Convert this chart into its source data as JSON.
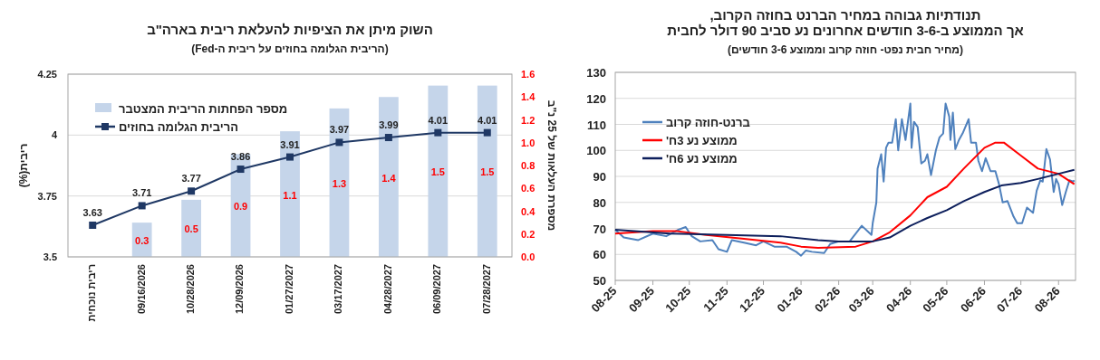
{
  "chart_data": [
    {
      "type": "bar",
      "title": "השוק מיתן את הציפיות להעלאת ריבית בארה\"ב",
      "subtitle": "(הריבית הגלומה בחוזים על ריבית ה-Fed)",
      "ylabel": "ריבית(%)",
      "y2label": "מספרת העלאות של 25 נ\"ב",
      "categories": [
        "ריבית נוכחית",
        "09/16/2026",
        "10/28/2026",
        "12/09/2026",
        "01/27/2027",
        "03/17/2027",
        "04/28/2027",
        "06/09/2027",
        "07/28/2027"
      ],
      "series": [
        {
          "type": "bar",
          "axis": "y2",
          "name": "מספר הפחתות הריבית המצטבר",
          "color": "#c5d5ea",
          "values": [
            null,
            0.3,
            0.5,
            0.9,
            1.1,
            1.3,
            1.4,
            1.5,
            1.5
          ]
        },
        {
          "type": "line",
          "name": "הריבית הגלומה בחוזים",
          "color": "#1f3864",
          "marker": "square",
          "values": [
            3.63,
            3.71,
            3.77,
            3.86,
            3.91,
            3.97,
            3.99,
            4.01,
            4.01
          ]
        }
      ],
      "ylim": [
        3.5,
        4.25
      ],
      "yticks": [
        3.5,
        3.75,
        4,
        4.25
      ],
      "y2lim": [
        0,
        1.6
      ],
      "y2ticks": [
        {
          "value": 0,
          "label": "0.0"
        },
        {
          "value": 0.2,
          "label": "0.2"
        },
        {
          "value": 0.4,
          "label": "0.4"
        },
        {
          "value": 0.6,
          "label": "0.6"
        },
        {
          "value": 0.8,
          "label": "0.8"
        },
        {
          "value": 1,
          "label": "1.0"
        },
        {
          "value": 1.2,
          "label": "1.2"
        },
        {
          "value": 1.4,
          "label": "1.4"
        },
        {
          "value": 1.6,
          "label": "1.6"
        }
      ],
      "data_labels": true,
      "grid": "y",
      "legend": "top left"
    },
    {
      "type": "line",
      "title": "תנודתיות גבוהה במחיר הברנט בחוזה הקרוב,\nאך הממוצע ב-3-6 חודשים אחרונים נע סביב 90 דולר לחבית",
      "subtitle": "(מחיר חבית נפט- חוזה קרוב וממוצע 3-6 חודשים)",
      "series": [
        {
          "name": "ברנט-חוזה קרוב",
          "color": "#4f81bd",
          "x": [
            "2025-08-01",
            "2025-08-08",
            "2025-08-20",
            "2025-09-01",
            "2025-09-12",
            "2025-09-22",
            "2025-09-28",
            "2025-10-03",
            "2025-10-10",
            "2025-10-20",
            "2025-10-25",
            "2025-11-01",
            "2025-11-05",
            "2025-11-15",
            "2025-11-25",
            "2025-12-01",
            "2025-12-10",
            "2025-12-20",
            "2025-12-28",
            "2026-01-01",
            "2026-01-05",
            "2026-01-10",
            "2026-01-20",
            "2026-01-25",
            "2026-02-01",
            "2026-02-10",
            "2026-02-20",
            "2026-02-28",
            "2026-03-01",
            "2026-03-04",
            "2026-03-05",
            "2026-03-08",
            "2026-03-10",
            "2026-03-12",
            "2026-03-14",
            "2026-03-17",
            "2026-03-20",
            "2026-03-22",
            "2026-03-25",
            "2026-03-28",
            "2026-04-01",
            "2026-04-02",
            "2026-04-04",
            "2026-04-07",
            "2026-04-10",
            "2026-04-13",
            "2026-04-15",
            "2026-04-18",
            "2026-04-22",
            "2026-04-25",
            "2026-04-28",
            "2026-04-30",
            "2026-05-03",
            "2026-05-04",
            "2026-05-06",
            "2026-05-08",
            "2026-05-11",
            "2026-05-14",
            "2026-05-19",
            "2026-05-21",
            "2026-05-25",
            "2026-05-27",
            "2026-05-30",
            "2026-06-02",
            "2026-06-06",
            "2026-06-10",
            "2026-06-13",
            "2026-06-16",
            "2026-06-20",
            "2026-06-25",
            "2026-06-28",
            "2026-07-02",
            "2026-07-06",
            "2026-07-11",
            "2026-07-14",
            "2026-07-17",
            "2026-07-19",
            "2026-07-22",
            "2026-07-25",
            "2026-07-28",
            "2026-07-30",
            "2026-08-01",
            "2026-08-04",
            "2026-08-07",
            "2026-08-10",
            "2026-08-13",
            "2026-08-14"
          ],
          "values": [
            69.5,
            66.5,
            65.5,
            68,
            67,
            69.5,
            70.5,
            67,
            65,
            65.5,
            62,
            61,
            65.5,
            64.5,
            63.5,
            65,
            63,
            63,
            61,
            59.5,
            61.5,
            61,
            60.5,
            64,
            65,
            65,
            71,
            67.5,
            72,
            80,
            93,
            98.5,
            88,
            101,
            103,
            103,
            112,
            100,
            112,
            104,
            118,
            101,
            111,
            109,
            95,
            96,
            98.5,
            90.5,
            100,
            105,
            106.5,
            118,
            113,
            104,
            114.5,
            100.5,
            104,
            106.5,
            112,
            103,
            103,
            96,
            92,
            97,
            92,
            92,
            87,
            80,
            80.5,
            74.5,
            72,
            72,
            78,
            76,
            84.5,
            88.5,
            88,
            100.5,
            96.5,
            84,
            89,
            87,
            79,
            84,
            88.5,
            88,
            88.5
          ]
        },
        {
          "name": "ממוצע נע 3ח'",
          "color": "#ff0000",
          "x": [
            "2025-08-01",
            "2025-09-01",
            "2025-09-20",
            "2025-10-15",
            "2025-11-15",
            "2025-12-15",
            "2026-01-01",
            "2026-01-15",
            "2026-02-15",
            "2026-03-01",
            "2026-03-15",
            "2026-04-01",
            "2026-04-15",
            "2026-05-01",
            "2026-05-15",
            "2026-06-01",
            "2026-06-10",
            "2026-06-17",
            "2026-07-01",
            "2026-07-15",
            "2026-08-01",
            "2026-08-14"
          ],
          "values": [
            68,
            69,
            69,
            67.5,
            66,
            64.5,
            63,
            62.5,
            63,
            65,
            68.5,
            75,
            82,
            86,
            93,
            101,
            103,
            103,
            98,
            93,
            91,
            87
          ]
        },
        {
          "name": "ממוצע נע 6ח'",
          "color": "#0d1f5c",
          "x": [
            "2025-08-01",
            "2025-09-15",
            "2025-11-01",
            "2025-12-15",
            "2026-01-15",
            "2026-02-01",
            "2026-03-01",
            "2026-03-15",
            "2026-04-01",
            "2026-04-15",
            "2026-05-01",
            "2026-05-15",
            "2026-06-01",
            "2026-06-15",
            "2026-07-01",
            "2026-07-15",
            "2026-08-01",
            "2026-08-14"
          ],
          "values": [
            69.5,
            68,
            67.5,
            67,
            65.5,
            65,
            65,
            66.5,
            71,
            74,
            77,
            80.5,
            84,
            86.5,
            87.5,
            89,
            91,
            92.5
          ]
        }
      ],
      "xlim": [
        "2025-08-01",
        "2026-08-15"
      ],
      "xticks": [
        {
          "value": "2025-08-01",
          "label": "08-25"
        },
        {
          "value": "2025-09-01",
          "label": "09-25"
        },
        {
          "value": "2025-10-01",
          "label": "10-25"
        },
        {
          "value": "2025-11-01",
          "label": "11-25"
        },
        {
          "value": "2025-12-01",
          "label": "12-25"
        },
        {
          "value": "2026-01-01",
          "label": "01-26"
        },
        {
          "value": "2026-02-01",
          "label": "02-26"
        },
        {
          "value": "2026-03-01",
          "label": "03-26"
        },
        {
          "value": "2026-04-01",
          "label": "04-26"
        },
        {
          "value": "2026-05-01",
          "label": "05-26"
        },
        {
          "value": "2026-06-01",
          "label": "06-26"
        },
        {
          "value": "2026-07-01",
          "label": "07-26"
        },
        {
          "value": "2026-08-01",
          "label": "08-26"
        }
      ],
      "ylim": [
        50,
        130
      ],
      "yticks": [
        50,
        60,
        70,
        80,
        90,
        100,
        110,
        120,
        130
      ],
      "grid": "y",
      "legend": "top left"
    }
  ]
}
